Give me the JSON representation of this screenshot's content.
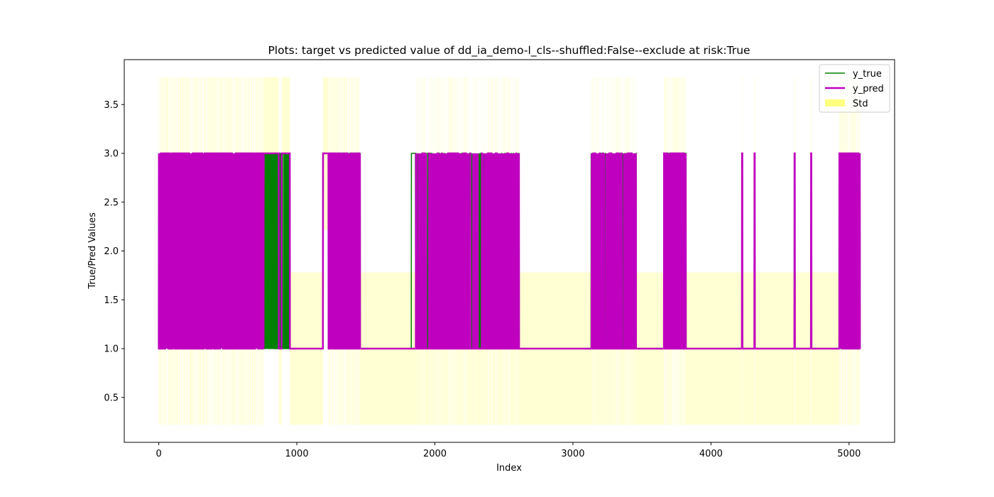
{
  "chart_data": {
    "type": "line",
    "title": "Plots: target vs predicted value of dd_ia_demo-l_cls--shuffled:False--exclude at risk:True",
    "xlabel": "Index",
    "ylabel": "True/Pred Values",
    "xlim": [
      -250,
      5330
    ],
    "ylim": [
      0.04,
      3.96
    ],
    "xticks": [
      0,
      1000,
      2000,
      3000,
      4000,
      5000
    ],
    "xtick_labels": [
      "0",
      "1000",
      "2000",
      "3000",
      "4000",
      "5000"
    ],
    "yticks": [
      0.5,
      1.0,
      1.5,
      2.0,
      2.5,
      3.0,
      3.5
    ],
    "ytick_labels": [
      "0.5",
      "1.0",
      "1.5",
      "2.0",
      "2.5",
      "3.0",
      "3.5"
    ],
    "grid": false,
    "legend_position": "top-right",
    "legend": [
      {
        "label": "y_true",
        "type": "line",
        "color": "#008000"
      },
      {
        "label": "y_pred",
        "type": "line",
        "color": "#bf00bf"
      },
      {
        "label": "Std",
        "type": "fill",
        "color": "#ffff80"
      }
    ],
    "n_points": 5080,
    "series": [
      {
        "name": "y_true",
        "color": "#008000",
        "segments": [
          {
            "x": [
              0,
              760
            ],
            "pattern": "dense",
            "values": [
              1,
              3
            ]
          },
          {
            "x": [
              760,
              950
            ],
            "pattern": "dense",
            "values": [
              1,
              3
            ]
          },
          {
            "x": [
              950,
              1190
            ],
            "pattern": "constant",
            "values": [
              1
            ]
          },
          {
            "x": [
              1190,
              1230
            ],
            "pattern": "constant",
            "values": [
              3
            ]
          },
          {
            "x": [
              1230,
              1460
            ],
            "pattern": "dense",
            "values": [
              1,
              3
            ]
          },
          {
            "x": [
              1460,
              1830
            ],
            "pattern": "constant",
            "values": [
              1
            ]
          },
          {
            "x": [
              1830,
              1860
            ],
            "pattern": "constant",
            "values": [
              3
            ]
          },
          {
            "x": [
              1860,
              2610
            ],
            "pattern": "sparse",
            "values": [
              1,
              3
            ]
          },
          {
            "x": [
              2610,
              3130
            ],
            "pattern": "constant",
            "values": [
              1
            ]
          },
          {
            "x": [
              3130,
              3460
            ],
            "pattern": "sparse",
            "values": [
              1,
              3
            ]
          },
          {
            "x": [
              3460,
              3660
            ],
            "pattern": "constant",
            "values": [
              1
            ]
          },
          {
            "x": [
              3660,
              3820
            ],
            "pattern": "dense",
            "values": [
              1,
              3
            ]
          },
          {
            "x": [
              3820,
              4930
            ],
            "pattern": "spikes",
            "values": [
              1,
              3
            ],
            "spike_x": [
              4225,
              4315,
              4605,
              4725
            ]
          },
          {
            "x": [
              4930,
              5080
            ],
            "pattern": "dense",
            "values": [
              1,
              3
            ]
          }
        ]
      },
      {
        "name": "y_pred",
        "color": "#bf00bf",
        "segments": [
          {
            "x": [
              0,
              760
            ],
            "pattern": "dense",
            "values": [
              1,
              3
            ]
          },
          {
            "x": [
              760,
              870
            ],
            "pattern": "constant",
            "values": [
              3
            ]
          },
          {
            "x": [
              870,
              890
            ],
            "pattern": "constant",
            "values": [
              1
            ]
          },
          {
            "x": [
              890,
              950
            ],
            "pattern": "constant",
            "values": [
              3
            ]
          },
          {
            "x": [
              950,
              1190
            ],
            "pattern": "constant",
            "values": [
              1
            ]
          },
          {
            "x": [
              1190,
              1230
            ],
            "pattern": "constant",
            "values": [
              3
            ]
          },
          {
            "x": [
              1230,
              1460
            ],
            "pattern": "dense",
            "values": [
              1,
              3
            ]
          },
          {
            "x": [
              1460,
              1860
            ],
            "pattern": "constant",
            "values": [
              1
            ]
          },
          {
            "x": [
              1860,
              2610
            ],
            "pattern": "sparse",
            "values": [
              1,
              3
            ]
          },
          {
            "x": [
              2610,
              3130
            ],
            "pattern": "constant",
            "values": [
              1
            ]
          },
          {
            "x": [
              3130,
              3460
            ],
            "pattern": "sparse",
            "values": [
              1,
              3
            ]
          },
          {
            "x": [
              3460,
              3660
            ],
            "pattern": "constant",
            "values": [
              1
            ]
          },
          {
            "x": [
              3660,
              3820
            ],
            "pattern": "dense",
            "values": [
              1,
              3
            ]
          },
          {
            "x": [
              3820,
              4930
            ],
            "pattern": "spikes",
            "values": [
              1,
              3
            ],
            "spike_x": [
              4225,
              4315,
              4605,
              4725
            ]
          },
          {
            "x": [
              4930,
              5080
            ],
            "pattern": "dense",
            "values": [
              1,
              3
            ]
          }
        ]
      }
    ],
    "std_band": {
      "name": "Std",
      "color": "#ffff80",
      "bands_by_pred": {
        "1": {
          "lower": 0.22,
          "upper": 1.78
        },
        "3": {
          "lower": 2.22,
          "upper": 3.78
        }
      }
    }
  }
}
